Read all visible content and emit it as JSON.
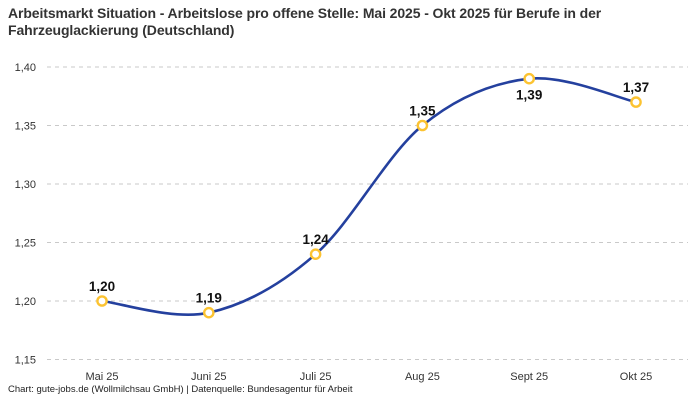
{
  "title": {
    "text": "Arbeitsmarkt Situation - Arbeitslose pro offene Stelle: Mai 2025 - Okt 2025 für Berufe in der Fahrzeuglackierung (Deutschland)"
  },
  "footer": {
    "text": "Chart: gute-jobs.de (Wollmilchsau GmbH) | Datenquelle: Bundesagentur für Arbeit"
  },
  "colors": {
    "line": "#24409e",
    "marker_ring": "#fcc331",
    "marker_fill": "#ffffff",
    "grid": "#c9c9c9",
    "title_text": "#333333",
    "axis_text": "#333333",
    "point_label_text": "#111111",
    "background": "#ffffff"
  },
  "chart_data": {
    "type": "line",
    "title": "Arbeitsmarkt Situation - Arbeitslose pro offene Stelle: Mai 2025 - Okt 2025 für Berufe in der Fahrzeuglackierung (Deutschland)",
    "categories": [
      "Mai 25",
      "Juni 25",
      "Juli 25",
      "Aug 25",
      "Sept 25",
      "Okt 25"
    ],
    "values": [
      1.2,
      1.19,
      1.24,
      1.35,
      1.39,
      1.37
    ],
    "point_labels": [
      "1,20",
      "1,19",
      "1,24",
      "1,35",
      "1,39",
      "1,37"
    ],
    "point_label_placement": [
      "above",
      "above",
      "above",
      "above",
      "below",
      "above"
    ],
    "xlabel": "",
    "ylabel": "",
    "ylim": [
      1.15,
      1.4
    ],
    "y_ticks": [
      {
        "value": 1.4,
        "label": "1,40"
      },
      {
        "value": 1.35,
        "label": "1,35"
      },
      {
        "value": 1.3,
        "label": "1,30"
      },
      {
        "value": 1.25,
        "label": "1,25"
      },
      {
        "value": 1.2,
        "label": "1,20"
      },
      {
        "value": 1.15,
        "label": "1,15"
      }
    ],
    "grid": "horizontal-dashed",
    "legend": "none",
    "smooth": true
  }
}
